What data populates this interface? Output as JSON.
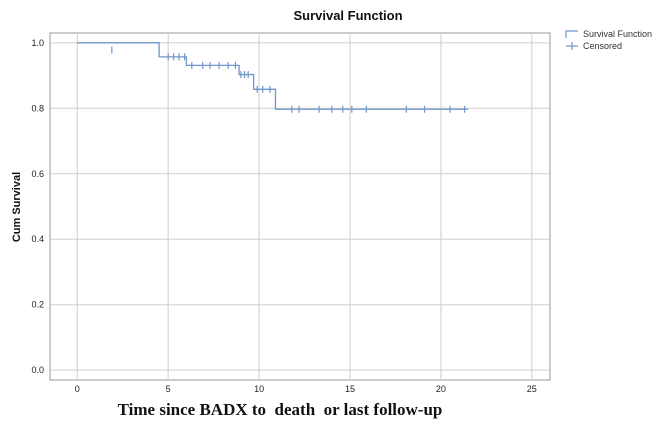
{
  "chart_data": {
    "type": "line",
    "title": "Survival Function",
    "xlabel": "Time since BADX to  death  or last follow-up",
    "ylabel": "Cum Survival",
    "xlim": [
      -1.5,
      26
    ],
    "ylim": [
      -0.03,
      1.03
    ],
    "x_ticks": [
      0,
      5,
      10,
      15,
      20,
      25
    ],
    "y_ticks": [
      0.0,
      0.2,
      0.4,
      0.6,
      0.8,
      1.0
    ],
    "x_tick_labels": [
      "0",
      "5",
      "10",
      "15",
      "20",
      "25"
    ],
    "y_tick_labels": [
      "0.0",
      "0.2",
      "0.4",
      "0.6",
      "0.8",
      "1.0"
    ],
    "grid": true,
    "legend_position": "top-right",
    "colors": {
      "line": "#6f95cc",
      "grid": "#cfcfcf",
      "axis": "#999999"
    },
    "series": [
      {
        "name": "Survival Function",
        "x": [
          0,
          1.6,
          4.5,
          6.0,
          8.9,
          9.7,
          10.9,
          21.5
        ],
        "y": [
          1.0,
          1.0,
          0.957,
          0.931,
          0.903,
          0.858,
          0.797,
          0.797
        ]
      }
    ],
    "censored": {
      "name": "Censored",
      "x": [
        1.9,
        5.0,
        5.3,
        5.6,
        5.9,
        6.3,
        6.9,
        7.3,
        7.8,
        8.3,
        8.7,
        9.0,
        9.2,
        9.4,
        9.9,
        10.2,
        10.6,
        11.8,
        12.2,
        13.3,
        14.0,
        14.6,
        15.1,
        15.9,
        18.1,
        19.1,
        20.5,
        21.3
      ],
      "y": [
        0.978,
        0.957,
        0.957,
        0.957,
        0.957,
        0.931,
        0.931,
        0.931,
        0.931,
        0.931,
        0.931,
        0.903,
        0.903,
        0.903,
        0.858,
        0.858,
        0.858,
        0.797,
        0.797,
        0.797,
        0.797,
        0.797,
        0.797,
        0.797,
        0.797,
        0.797,
        0.797,
        0.797
      ]
    }
  }
}
